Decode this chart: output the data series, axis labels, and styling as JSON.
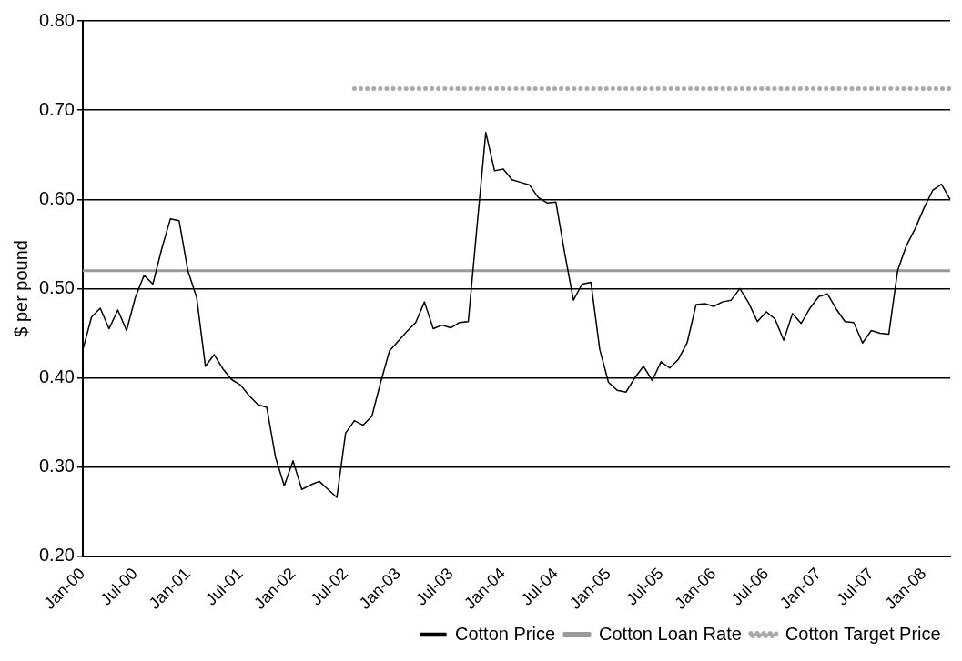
{
  "chart_data": {
    "type": "line",
    "ylabel": "$ per pound",
    "categories": [
      "Jan-00",
      null,
      null,
      null,
      null,
      null,
      "Jul-00",
      null,
      null,
      null,
      null,
      null,
      "Jan-01",
      null,
      null,
      null,
      null,
      null,
      "Jul-01",
      null,
      null,
      null,
      null,
      null,
      "Jan-02",
      null,
      null,
      null,
      null,
      null,
      "Jul-02",
      null,
      null,
      null,
      null,
      null,
      "Jan-03",
      null,
      null,
      null,
      null,
      null,
      "Jul-03",
      null,
      null,
      null,
      null,
      null,
      "Jan-04",
      null,
      null,
      null,
      null,
      null,
      "Jul-04",
      null,
      null,
      null,
      null,
      null,
      "Jan-05",
      null,
      null,
      null,
      null,
      null,
      "Jul-05",
      null,
      null,
      null,
      null,
      null,
      "Jan-06",
      null,
      null,
      null,
      null,
      null,
      "Jul-06",
      null,
      null,
      null,
      null,
      null,
      "Jan-07",
      null,
      null,
      null,
      null,
      null,
      "Jul-07",
      null,
      null,
      null,
      null,
      null,
      "Jan-08",
      null,
      null,
      null
    ],
    "series": [
      {
        "name": "Cotton Price",
        "color": "#000000",
        "line_style": "solid",
        "values": [
          0.431,
          0.468,
          0.478,
          0.455,
          0.476,
          0.453,
          0.49,
          0.515,
          0.505,
          0.544,
          0.578,
          0.576,
          0.52,
          0.49,
          0.413,
          0.426,
          0.41,
          0.398,
          0.392,
          0.38,
          0.37,
          0.367,
          0.311,
          0.279,
          0.307,
          0.275,
          0.28,
          0.284,
          0.275,
          0.266,
          0.338,
          0.352,
          0.347,
          0.357,
          0.395,
          0.43,
          0.441,
          0.452,
          0.462,
          0.485,
          0.455,
          0.459,
          0.456,
          0.462,
          0.463,
          0.57,
          0.675,
          0.632,
          0.634,
          0.622,
          0.619,
          0.616,
          0.602,
          0.596,
          0.597,
          0.54,
          0.487,
          0.505,
          0.507,
          0.432,
          0.395,
          0.386,
          0.384,
          0.4,
          0.413,
          0.397,
          0.418,
          0.411,
          0.421,
          0.44,
          0.482,
          0.483,
          0.48,
          0.485,
          0.487,
          0.5,
          0.484,
          0.463,
          0.474,
          0.466,
          0.442,
          0.472,
          0.461,
          0.478,
          0.491,
          0.494,
          0.477,
          0.463,
          0.462,
          0.439,
          0.453,
          0.45,
          0.449,
          0.52,
          0.548,
          0.567,
          0.59,
          0.61,
          0.617,
          0.6
        ]
      },
      {
        "name": "Cotton Loan Rate",
        "color": "#999999",
        "line_style": "solid",
        "values": [
          0.52,
          0.52,
          0.52,
          0.52,
          0.52,
          0.52,
          0.52,
          0.52,
          0.52,
          0.52,
          0.52,
          0.52,
          0.52,
          0.52,
          0.52,
          0.52,
          0.52,
          0.52,
          0.52,
          0.52,
          0.52,
          0.52,
          0.52,
          0.52,
          0.52,
          0.52,
          0.52,
          0.52,
          0.52,
          0.52,
          0.52,
          0.52,
          0.52,
          0.52,
          0.52,
          0.52,
          0.52,
          0.52,
          0.52,
          0.52,
          0.52,
          0.52,
          0.52,
          0.52,
          0.52,
          0.52,
          0.52,
          0.52,
          0.52,
          0.52,
          0.52,
          0.52,
          0.52,
          0.52,
          0.52,
          0.52,
          0.52,
          0.52,
          0.52,
          0.52,
          0.52,
          0.52,
          0.52,
          0.52,
          0.52,
          0.52,
          0.52,
          0.52,
          0.52,
          0.52,
          0.52,
          0.52,
          0.52,
          0.52,
          0.52,
          0.52,
          0.52,
          0.52,
          0.52,
          0.52,
          0.52,
          0.52,
          0.52,
          0.52,
          0.52,
          0.52,
          0.52,
          0.52,
          0.52,
          0.52,
          0.52,
          0.52,
          0.52,
          0.52,
          0.52,
          0.52,
          0.52,
          0.52,
          0.52,
          0.52
        ]
      },
      {
        "name": "Cotton Target Price",
        "color": "#aaaaaa",
        "line_style": "dotted",
        "values": [
          null,
          null,
          null,
          null,
          null,
          null,
          null,
          null,
          null,
          null,
          null,
          null,
          null,
          null,
          null,
          null,
          null,
          null,
          null,
          null,
          null,
          null,
          null,
          null,
          null,
          null,
          null,
          null,
          null,
          null,
          null,
          0.724,
          0.724,
          0.724,
          0.724,
          0.724,
          0.724,
          0.724,
          0.724,
          0.724,
          0.724,
          0.724,
          0.724,
          0.724,
          0.724,
          0.724,
          0.724,
          0.724,
          0.724,
          0.724,
          0.724,
          0.724,
          0.724,
          0.724,
          0.724,
          0.724,
          0.724,
          0.724,
          0.724,
          0.724,
          0.724,
          0.724,
          0.724,
          0.724,
          0.724,
          0.724,
          0.724,
          0.724,
          0.724,
          0.724,
          0.724,
          0.724,
          0.724,
          0.724,
          0.724,
          0.724,
          0.724,
          0.724,
          0.724,
          0.724,
          0.724,
          0.724,
          0.724,
          0.724,
          0.724,
          0.724,
          0.724,
          0.724,
          0.724,
          0.724,
          0.724,
          0.724,
          0.724,
          0.724,
          0.724,
          0.724,
          0.724,
          0.724,
          0.724,
          0.724
        ]
      }
    ],
    "ylim": [
      0.2,
      0.8
    ],
    "yticks": [
      {
        "value": 0.2,
        "label": "0.20"
      },
      {
        "value": 0.3,
        "label": "0.30"
      },
      {
        "value": 0.4,
        "label": "0.40"
      },
      {
        "value": 0.5,
        "label": "0.50"
      },
      {
        "value": 0.6,
        "label": "0.60"
      },
      {
        "value": 0.7,
        "label": "0.70"
      },
      {
        "value": 0.8,
        "label": "0.80"
      }
    ],
    "grid": "y",
    "legend": "bottom",
    "marker": "none"
  }
}
